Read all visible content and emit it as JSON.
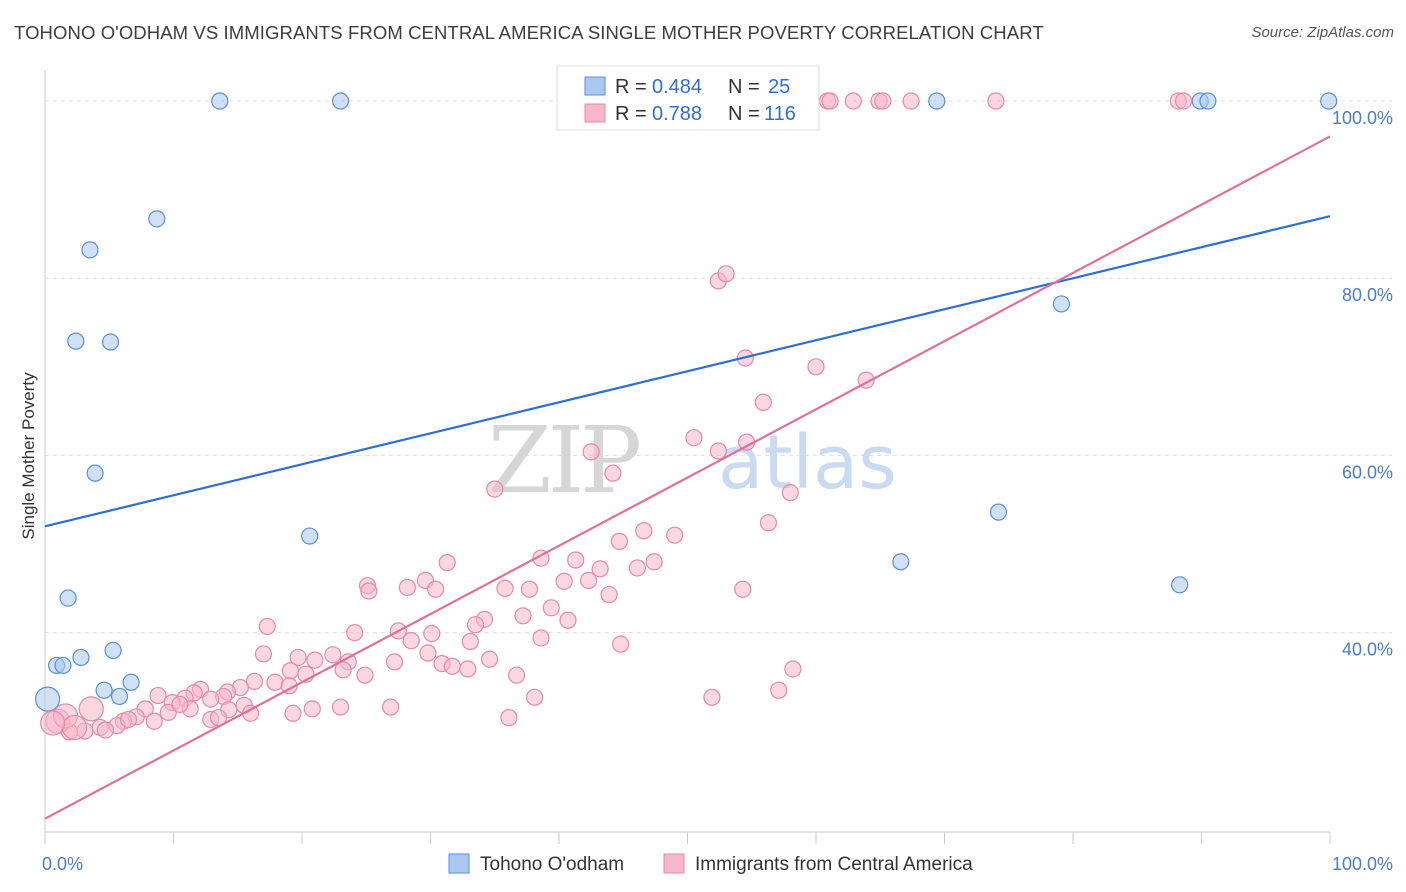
{
  "title": "TOHONO O'ODHAM VS IMMIGRANTS FROM CENTRAL AMERICA SINGLE MOTHER POVERTY CORRELATION CHART",
  "source": "Source: ZipAtlas.com",
  "watermark": {
    "zip": "ZIP",
    "atlas": "atlas"
  },
  "legend": {
    "r_label": "R =",
    "n_label": "N =",
    "rows": [
      {
        "r": "0.484",
        "n": "25"
      },
      {
        "r": "0.788",
        "n": "116"
      }
    ]
  },
  "colors": {
    "series1_fill": "#aac8ef",
    "series1_stroke": "#5b8fd8",
    "series1_line": "#2f6fd0",
    "series2_fill": "#f7b6ca",
    "series2_stroke": "#e58aa8",
    "series2_line": "#e0709a",
    "axis_text": "#4a7cc9",
    "grid": "#dddddd"
  },
  "chart_data": {
    "type": "scatter",
    "xlabel": "",
    "ylabel": "Single Mother Poverty",
    "xlim": [
      0,
      100
    ],
    "ylim": [
      17.5,
      103.5
    ],
    "x_tick_labels": [
      "0.0%",
      "100.0%"
    ],
    "y_ticks": [
      {
        "value": 40,
        "label": "40.0%"
      },
      {
        "value": 60,
        "label": "60.0%"
      },
      {
        "value": 80,
        "label": "80.0%"
      },
      {
        "value": 100,
        "label": "100.0%"
      }
    ],
    "grid": true,
    "legend_position": "top-center",
    "series": [
      {
        "name": "Tohono O'odham",
        "r": 0.484,
        "n": 25,
        "trend": {
          "x": [
            0,
            100
          ],
          "y": [
            52.0,
            87.0
          ]
        },
        "points": [
          {
            "x": 13.6,
            "y": 100
          },
          {
            "x": 23.0,
            "y": 100
          },
          {
            "x": 69.4,
            "y": 100
          },
          {
            "x": 89.9,
            "y": 100
          },
          {
            "x": 90.5,
            "y": 100
          },
          {
            "x": 99.9,
            "y": 100
          },
          {
            "x": 8.7,
            "y": 86.7
          },
          {
            "x": 3.5,
            "y": 83.2
          },
          {
            "x": 2.4,
            "y": 72.9
          },
          {
            "x": 5.1,
            "y": 72.8
          },
          {
            "x": 79.1,
            "y": 77.1
          },
          {
            "x": 3.9,
            "y": 58.0
          },
          {
            "x": 20.6,
            "y": 50.9
          },
          {
            "x": 74.2,
            "y": 53.6
          },
          {
            "x": 66.6,
            "y": 48.0
          },
          {
            "x": 88.3,
            "y": 45.4
          },
          {
            "x": 1.8,
            "y": 43.9
          },
          {
            "x": 2.8,
            "y": 37.2
          },
          {
            "x": 5.3,
            "y": 38.0
          },
          {
            "x": 0.9,
            "y": 36.3
          },
          {
            "x": 1.4,
            "y": 36.3
          },
          {
            "x": 6.7,
            "y": 34.4
          },
          {
            "x": 4.6,
            "y": 33.5
          },
          {
            "x": 5.8,
            "y": 32.8
          },
          {
            "x": 0.2,
            "y": 32.5,
            "big": true
          }
        ]
      },
      {
        "name": "Immigrants from Central America",
        "r": 0.788,
        "n": 116,
        "trend": {
          "x": [
            0,
            100
          ],
          "y": [
            19.0,
            96.0
          ]
        },
        "points": [
          {
            "x": 60.9,
            "y": 100
          },
          {
            "x": 61.1,
            "y": 100
          },
          {
            "x": 62.9,
            "y": 100
          },
          {
            "x": 64.9,
            "y": 100
          },
          {
            "x": 65.2,
            "y": 100
          },
          {
            "x": 67.4,
            "y": 100
          },
          {
            "x": 74.0,
            "y": 100
          },
          {
            "x": 88.2,
            "y": 100
          },
          {
            "x": 88.6,
            "y": 100
          },
          {
            "x": 52.4,
            "y": 79.7
          },
          {
            "x": 53.0,
            "y": 80.5
          },
          {
            "x": 54.5,
            "y": 71.0
          },
          {
            "x": 60.0,
            "y": 70.0
          },
          {
            "x": 63.9,
            "y": 68.5
          },
          {
            "x": 55.9,
            "y": 66.0
          },
          {
            "x": 50.5,
            "y": 62.0
          },
          {
            "x": 54.6,
            "y": 61.5
          },
          {
            "x": 52.4,
            "y": 60.5
          },
          {
            "x": 42.5,
            "y": 60.4
          },
          {
            "x": 44.2,
            "y": 58.0
          },
          {
            "x": 35.0,
            "y": 56.2
          },
          {
            "x": 58.0,
            "y": 55.8
          },
          {
            "x": 56.3,
            "y": 52.4
          },
          {
            "x": 46.6,
            "y": 51.5
          },
          {
            "x": 49.0,
            "y": 51.0
          },
          {
            "x": 44.7,
            "y": 50.3
          },
          {
            "x": 38.6,
            "y": 48.4
          },
          {
            "x": 41.3,
            "y": 48.2
          },
          {
            "x": 47.4,
            "y": 48.0
          },
          {
            "x": 31.3,
            "y": 47.9
          },
          {
            "x": 46.1,
            "y": 47.3
          },
          {
            "x": 43.2,
            "y": 47.2
          },
          {
            "x": 40.4,
            "y": 45.8
          },
          {
            "x": 42.3,
            "y": 45.9
          },
          {
            "x": 29.6,
            "y": 45.9
          },
          {
            "x": 25.1,
            "y": 45.3
          },
          {
            "x": 28.2,
            "y": 45.1
          },
          {
            "x": 30.4,
            "y": 44.9
          },
          {
            "x": 35.8,
            "y": 45.0
          },
          {
            "x": 37.7,
            "y": 44.9
          },
          {
            "x": 54.3,
            "y": 44.9
          },
          {
            "x": 43.9,
            "y": 44.3
          },
          {
            "x": 25.2,
            "y": 44.7
          },
          {
            "x": 39.4,
            "y": 42.8
          },
          {
            "x": 37.2,
            "y": 41.9
          },
          {
            "x": 40.7,
            "y": 41.4
          },
          {
            "x": 34.2,
            "y": 41.5
          },
          {
            "x": 33.5,
            "y": 40.9
          },
          {
            "x": 17.3,
            "y": 40.7
          },
          {
            "x": 27.5,
            "y": 40.2
          },
          {
            "x": 24.1,
            "y": 40.0
          },
          {
            "x": 30.1,
            "y": 39.9
          },
          {
            "x": 38.6,
            "y": 39.4
          },
          {
            "x": 28.5,
            "y": 39.1
          },
          {
            "x": 33.1,
            "y": 39.0
          },
          {
            "x": 44.8,
            "y": 38.7
          },
          {
            "x": 29.8,
            "y": 37.7
          },
          {
            "x": 17.0,
            "y": 37.6
          },
          {
            "x": 19.7,
            "y": 37.2
          },
          {
            "x": 22.4,
            "y": 37.5
          },
          {
            "x": 21.0,
            "y": 36.9
          },
          {
            "x": 34.6,
            "y": 37.0
          },
          {
            "x": 27.2,
            "y": 36.7
          },
          {
            "x": 23.6,
            "y": 36.7
          },
          {
            "x": 30.9,
            "y": 36.5
          },
          {
            "x": 31.7,
            "y": 36.2
          },
          {
            "x": 23.2,
            "y": 35.8
          },
          {
            "x": 32.9,
            "y": 35.9
          },
          {
            "x": 19.1,
            "y": 35.7
          },
          {
            "x": 20.3,
            "y": 35.3
          },
          {
            "x": 24.9,
            "y": 35.2
          },
          {
            "x": 36.7,
            "y": 35.2
          },
          {
            "x": 58.2,
            "y": 35.9
          },
          {
            "x": 16.3,
            "y": 34.5
          },
          {
            "x": 17.9,
            "y": 34.4
          },
          {
            "x": 19.0,
            "y": 34.0
          },
          {
            "x": 15.2,
            "y": 33.8
          },
          {
            "x": 12.1,
            "y": 33.6
          },
          {
            "x": 14.2,
            "y": 33.3
          },
          {
            "x": 11.6,
            "y": 33.2
          },
          {
            "x": 57.1,
            "y": 33.5
          },
          {
            "x": 8.8,
            "y": 32.9
          },
          {
            "x": 13.9,
            "y": 32.8
          },
          {
            "x": 10.9,
            "y": 32.6
          },
          {
            "x": 12.9,
            "y": 32.5
          },
          {
            "x": 38.1,
            "y": 32.7
          },
          {
            "x": 51.9,
            "y": 32.7
          },
          {
            "x": 9.9,
            "y": 32.1
          },
          {
            "x": 7.8,
            "y": 31.4
          },
          {
            "x": 15.5,
            "y": 31.8
          },
          {
            "x": 11.3,
            "y": 31.4
          },
          {
            "x": 20.8,
            "y": 31.4
          },
          {
            "x": 23.0,
            "y": 31.6
          },
          {
            "x": 26.9,
            "y": 31.6
          },
          {
            "x": 14.3,
            "y": 31.3
          },
          {
            "x": 9.6,
            "y": 31.0
          },
          {
            "x": 16.0,
            "y": 30.9
          },
          {
            "x": 19.3,
            "y": 30.9
          },
          {
            "x": 7.1,
            "y": 30.5
          },
          {
            "x": 12.9,
            "y": 30.2
          },
          {
            "x": 8.5,
            "y": 30.0
          },
          {
            "x": 6.1,
            "y": 30.0
          },
          {
            "x": 13.5,
            "y": 30.4
          },
          {
            "x": 36.1,
            "y": 30.4
          },
          {
            "x": 5.6,
            "y": 29.5
          },
          {
            "x": 4.3,
            "y": 29.3
          },
          {
            "x": 3.1,
            "y": 28.9
          },
          {
            "x": 1.9,
            "y": 28.8
          },
          {
            "x": 1.0,
            "y": 30.0,
            "big": true
          },
          {
            "x": 1.6,
            "y": 30.6,
            "big": true
          },
          {
            "x": 2.3,
            "y": 29.3,
            "big": true
          },
          {
            "x": 0.6,
            "y": 29.8,
            "big": true
          },
          {
            "x": 3.6,
            "y": 31.4,
            "big": true
          },
          {
            "x": 4.7,
            "y": 29.0
          },
          {
            "x": 6.5,
            "y": 30.2
          },
          {
            "x": 10.5,
            "y": 31.9
          }
        ]
      }
    ]
  },
  "bottom_legend": [
    "Tohono O'odham",
    "Immigrants from Central America"
  ]
}
